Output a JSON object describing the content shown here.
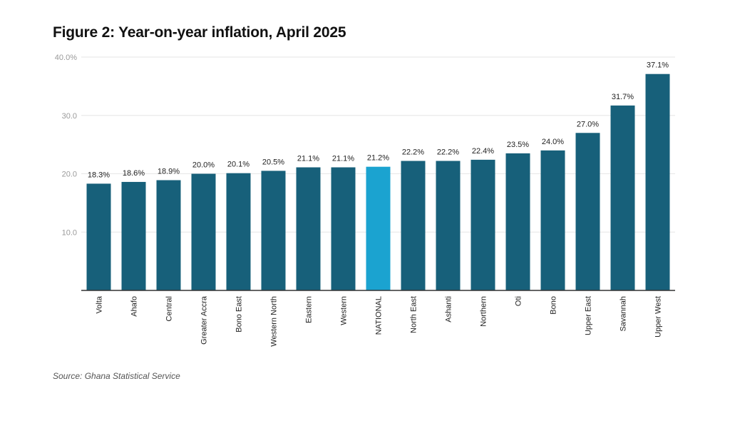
{
  "chart_data": {
    "type": "bar",
    "title": "Figure 2: Year-on-year inflation, April 2025",
    "source": "Source: Ghana Statistical Service",
    "xlabel": "",
    "ylabel": "",
    "ylim": [
      0,
      40
    ],
    "grid": true,
    "legend": "none",
    "y_ticks": [
      {
        "value": 10,
        "label": "10.0"
      },
      {
        "value": 20,
        "label": "20.0"
      },
      {
        "value": 30,
        "label": "30.0"
      },
      {
        "value": 40,
        "label": "40.0%"
      }
    ],
    "categories": [
      "Volta",
      "Ahafo",
      "Central",
      "Greater Accra",
      "Bono East",
      "Western North",
      "Eastern",
      "Western",
      "NATIONAL",
      "North East",
      "Ashanti",
      "Northern",
      "Oti",
      "Bono",
      "Upper East",
      "Savannah",
      "Upper West"
    ],
    "values": [
      18.3,
      18.6,
      18.9,
      20.0,
      20.1,
      20.5,
      21.1,
      21.1,
      21.2,
      22.2,
      22.2,
      22.4,
      23.5,
      24.0,
      27.0,
      31.7,
      37.1
    ],
    "value_labels": [
      "18.3%",
      "18.6%",
      "18.9%",
      "20.0%",
      "20.1%",
      "20.5%",
      "21.1%",
      "21.1%",
      "21.2%",
      "22.2%",
      "22.2%",
      "22.4%",
      "23.5%",
      "24.0%",
      "27.0%",
      "31.7%",
      "37.1%"
    ],
    "colors": {
      "default": "#17607a",
      "highlight": "#1ba3d0",
      "highlight_category": "NATIONAL",
      "grid": "#e6e6e6",
      "axis": "#333333"
    }
  }
}
